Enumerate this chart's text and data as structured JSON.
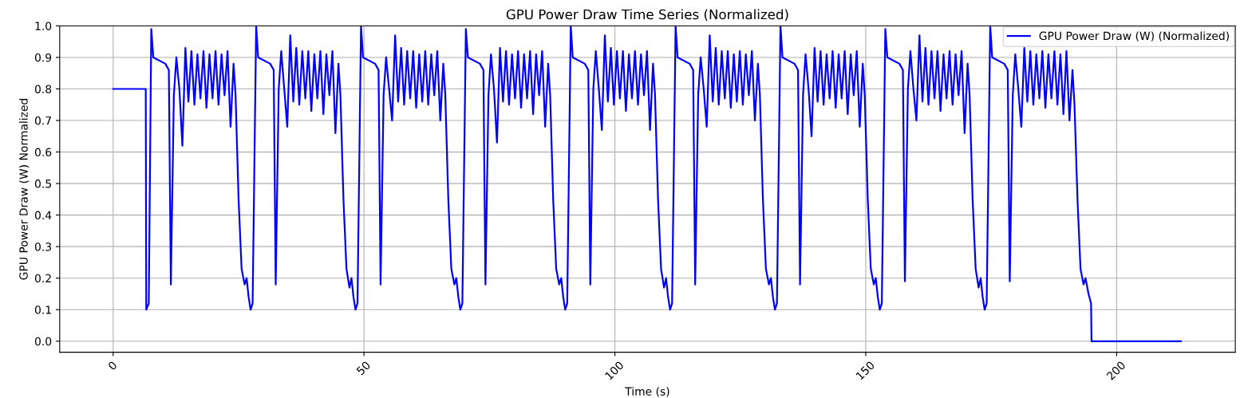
{
  "chart_data": {
    "type": "line",
    "title": "GPU Power Draw Time Series (Normalized)",
    "xlabel": "Time (s)",
    "ylabel": "GPU Power Draw (W) Normalized",
    "xlim": [
      -10.65,
      223.65
    ],
    "ylim": [
      -0.035,
      1.0
    ],
    "xticks": [
      0,
      50,
      100,
      150,
      200
    ],
    "yticks": [
      {
        "value": 0,
        "label": "0.0"
      },
      0.1,
      0.2,
      0.3,
      0.4,
      0.5,
      0.6,
      0.7,
      0.8,
      0.9,
      {
        "value": 1,
        "label": "1.0"
      }
    ],
    "grid": true,
    "legend": "top right",
    "marker": "none",
    "line_style": "solid",
    "series": [
      {
        "name": "GPU Power Draw (W) (Normalized)",
        "color": "#0000ff",
        "x": [
          0,
          6.5,
          6.6,
          7.1,
          7.6,
          8.0,
          10.4,
          11.1,
          11.5,
          12.1,
          12.6,
          13.2,
          13.8,
          14.4,
          15.0,
          15.6,
          16.2,
          16.8,
          17.4,
          18.0,
          18.6,
          19.2,
          19.8,
          20.4,
          21.0,
          21.6,
          22.2,
          22.8,
          23.4,
          24.0,
          24.4,
          25.0,
          25.6,
          26.2,
          26.6,
          27.0,
          27.4,
          27.8,
          28.5,
          28.9,
          31.3,
          32.0,
          32.4,
          33.0,
          33.5,
          34.1,
          34.7,
          35.3,
          35.9,
          36.5,
          37.1,
          37.7,
          38.3,
          38.9,
          39.5,
          40.1,
          40.7,
          41.3,
          41.9,
          42.5,
          43.1,
          43.7,
          44.3,
          44.9,
          45.3,
          45.9,
          46.5,
          47.1,
          47.5,
          47.9,
          48.3,
          48.7,
          49.4,
          49.8,
          52.2,
          52.9,
          53.3,
          53.9,
          54.4,
          55.0,
          55.6,
          56.2,
          56.8,
          57.4,
          58.0,
          58.6,
          59.2,
          59.8,
          60.4,
          61.0,
          61.6,
          62.2,
          62.8,
          63.4,
          64.0,
          64.6,
          65.2,
          65.8,
          66.2,
          66.8,
          67.4,
          68.0,
          68.4,
          68.8,
          69.2,
          69.6,
          70.3,
          70.7,
          73.1,
          73.8,
          74.2,
          74.8,
          75.3,
          75.9,
          76.5,
          77.1,
          77.7,
          78.3,
          78.9,
          79.5,
          80.1,
          80.7,
          81.3,
          81.9,
          82.5,
          83.1,
          83.7,
          84.3,
          84.9,
          85.5,
          86.1,
          86.7,
          87.1,
          87.7,
          88.3,
          88.9,
          89.3,
          89.7,
          90.1,
          90.5,
          91.2,
          91.6,
          94.0,
          94.7,
          95.1,
          95.7,
          96.2,
          96.8,
          97.4,
          98.0,
          98.6,
          99.2,
          99.8,
          100.4,
          101.0,
          101.6,
          102.2,
          102.8,
          103.4,
          104.0,
          104.6,
          105.2,
          105.8,
          106.4,
          107.0,
          107.6,
          108.0,
          108.6,
          109.2,
          109.8,
          110.2,
          110.6,
          111.0,
          111.4,
          112.1,
          112.5,
          114.9,
          115.6,
          116.0,
          116.6,
          117.1,
          117.7,
          118.3,
          118.9,
          119.5,
          120.1,
          120.7,
          121.3,
          121.9,
          122.5,
          123.1,
          123.7,
          124.3,
          124.9,
          125.5,
          126.1,
          126.7,
          127.3,
          127.9,
          128.5,
          128.9,
          129.5,
          130.1,
          130.7,
          131.1,
          131.5,
          131.9,
          132.3,
          133.0,
          133.4,
          135.8,
          136.5,
          136.9,
          137.5,
          138.0,
          138.6,
          139.2,
          139.8,
          140.4,
          141.0,
          141.6,
          142.2,
          142.8,
          143.4,
          144.0,
          144.6,
          145.2,
          145.8,
          146.4,
          147.0,
          147.6,
          148.2,
          148.8,
          149.4,
          149.8,
          150.4,
          151.0,
          151.6,
          152.0,
          152.4,
          152.8,
          153.2,
          153.9,
          154.3,
          156.7,
          157.4,
          157.8,
          158.4,
          158.9,
          159.5,
          160.1,
          160.7,
          161.3,
          161.9,
          162.5,
          163.1,
          163.7,
          164.3,
          164.9,
          165.5,
          166.1,
          166.7,
          167.3,
          167.9,
          168.5,
          169.1,
          169.7,
          170.3,
          170.7,
          171.3,
          171.9,
          172.5,
          172.9,
          173.3,
          173.7,
          174.1,
          174.8,
          175.2,
          177.6,
          178.3,
          178.7,
          179.3,
          179.8,
          180.4,
          181.0,
          181.6,
          182.2,
          182.8,
          183.4,
          184.0,
          184.6,
          185.2,
          185.8,
          186.4,
          187.0,
          187.6,
          188.2,
          188.8,
          189.4,
          190.0,
          190.6,
          191.2,
          191.6,
          192.2,
          192.8,
          193.4,
          193.8,
          194.4,
          194.9,
          195.0,
          212.8
        ],
        "values": [
          0.8,
          0.8,
          0.1,
          0.12,
          0.99,
          0.9,
          0.88,
          0.86,
          0.18,
          0.78,
          0.9,
          0.8,
          0.62,
          0.93,
          0.76,
          0.92,
          0.75,
          0.91,
          0.77,
          0.92,
          0.74,
          0.91,
          0.77,
          0.92,
          0.75,
          0.91,
          0.78,
          0.92,
          0.68,
          0.88,
          0.78,
          0.45,
          0.23,
          0.18,
          0.2,
          0.14,
          0.1,
          0.12,
          1.0,
          0.9,
          0.88,
          0.86,
          0.18,
          0.8,
          0.92,
          0.8,
          0.68,
          0.97,
          0.76,
          0.93,
          0.75,
          0.92,
          0.77,
          0.92,
          0.73,
          0.91,
          0.77,
          0.92,
          0.72,
          0.91,
          0.78,
          0.92,
          0.66,
          0.88,
          0.78,
          0.45,
          0.23,
          0.17,
          0.2,
          0.14,
          0.1,
          0.12,
          1.0,
          0.9,
          0.88,
          0.86,
          0.18,
          0.78,
          0.9,
          0.8,
          0.7,
          0.97,
          0.76,
          0.93,
          0.75,
          0.92,
          0.77,
          0.92,
          0.74,
          0.91,
          0.76,
          0.92,
          0.75,
          0.91,
          0.78,
          0.92,
          0.7,
          0.88,
          0.78,
          0.45,
          0.23,
          0.18,
          0.2,
          0.14,
          0.1,
          0.12,
          0.99,
          0.9,
          0.88,
          0.86,
          0.18,
          0.78,
          0.91,
          0.8,
          0.63,
          0.93,
          0.76,
          0.92,
          0.75,
          0.91,
          0.77,
          0.92,
          0.74,
          0.91,
          0.77,
          0.92,
          0.72,
          0.91,
          0.78,
          0.92,
          0.68,
          0.88,
          0.78,
          0.45,
          0.23,
          0.18,
          0.2,
          0.14,
          0.1,
          0.12,
          1.0,
          0.9,
          0.88,
          0.86,
          0.18,
          0.8,
          0.92,
          0.8,
          0.67,
          0.97,
          0.76,
          0.93,
          0.75,
          0.92,
          0.77,
          0.92,
          0.73,
          0.91,
          0.77,
          0.92,
          0.75,
          0.91,
          0.78,
          0.92,
          0.67,
          0.88,
          0.78,
          0.45,
          0.23,
          0.17,
          0.2,
          0.14,
          0.1,
          0.12,
          1.0,
          0.9,
          0.88,
          0.86,
          0.18,
          0.78,
          0.9,
          0.8,
          0.68,
          0.97,
          0.76,
          0.93,
          0.75,
          0.92,
          0.77,
          0.92,
          0.74,
          0.91,
          0.76,
          0.92,
          0.75,
          0.91,
          0.78,
          0.92,
          0.7,
          0.88,
          0.78,
          0.45,
          0.23,
          0.18,
          0.2,
          0.14,
          0.1,
          0.12,
          1.0,
          0.9,
          0.88,
          0.86,
          0.18,
          0.78,
          0.91,
          0.8,
          0.65,
          0.93,
          0.76,
          0.92,
          0.75,
          0.91,
          0.77,
          0.92,
          0.74,
          0.91,
          0.77,
          0.92,
          0.72,
          0.91,
          0.78,
          0.92,
          0.68,
          0.88,
          0.78,
          0.45,
          0.23,
          0.18,
          0.2,
          0.14,
          0.1,
          0.12,
          0.99,
          0.9,
          0.88,
          0.86,
          0.19,
          0.8,
          0.92,
          0.8,
          0.7,
          0.97,
          0.76,
          0.93,
          0.75,
          0.92,
          0.77,
          0.92,
          0.73,
          0.91,
          0.77,
          0.92,
          0.75,
          0.91,
          0.78,
          0.92,
          0.66,
          0.88,
          0.78,
          0.45,
          0.23,
          0.17,
          0.2,
          0.14,
          0.1,
          0.12,
          1.0,
          0.9,
          0.88,
          0.86,
          0.19,
          0.78,
          0.91,
          0.8,
          0.68,
          0.93,
          0.76,
          0.92,
          0.75,
          0.91,
          0.77,
          0.92,
          0.74,
          0.91,
          0.77,
          0.92,
          0.75,
          0.91,
          0.72,
          0.92,
          0.7,
          0.86,
          0.75,
          0.45,
          0.23,
          0.18,
          0.2,
          0.15,
          0.12,
          0.0,
          0.0
        ]
      }
    ]
  }
}
